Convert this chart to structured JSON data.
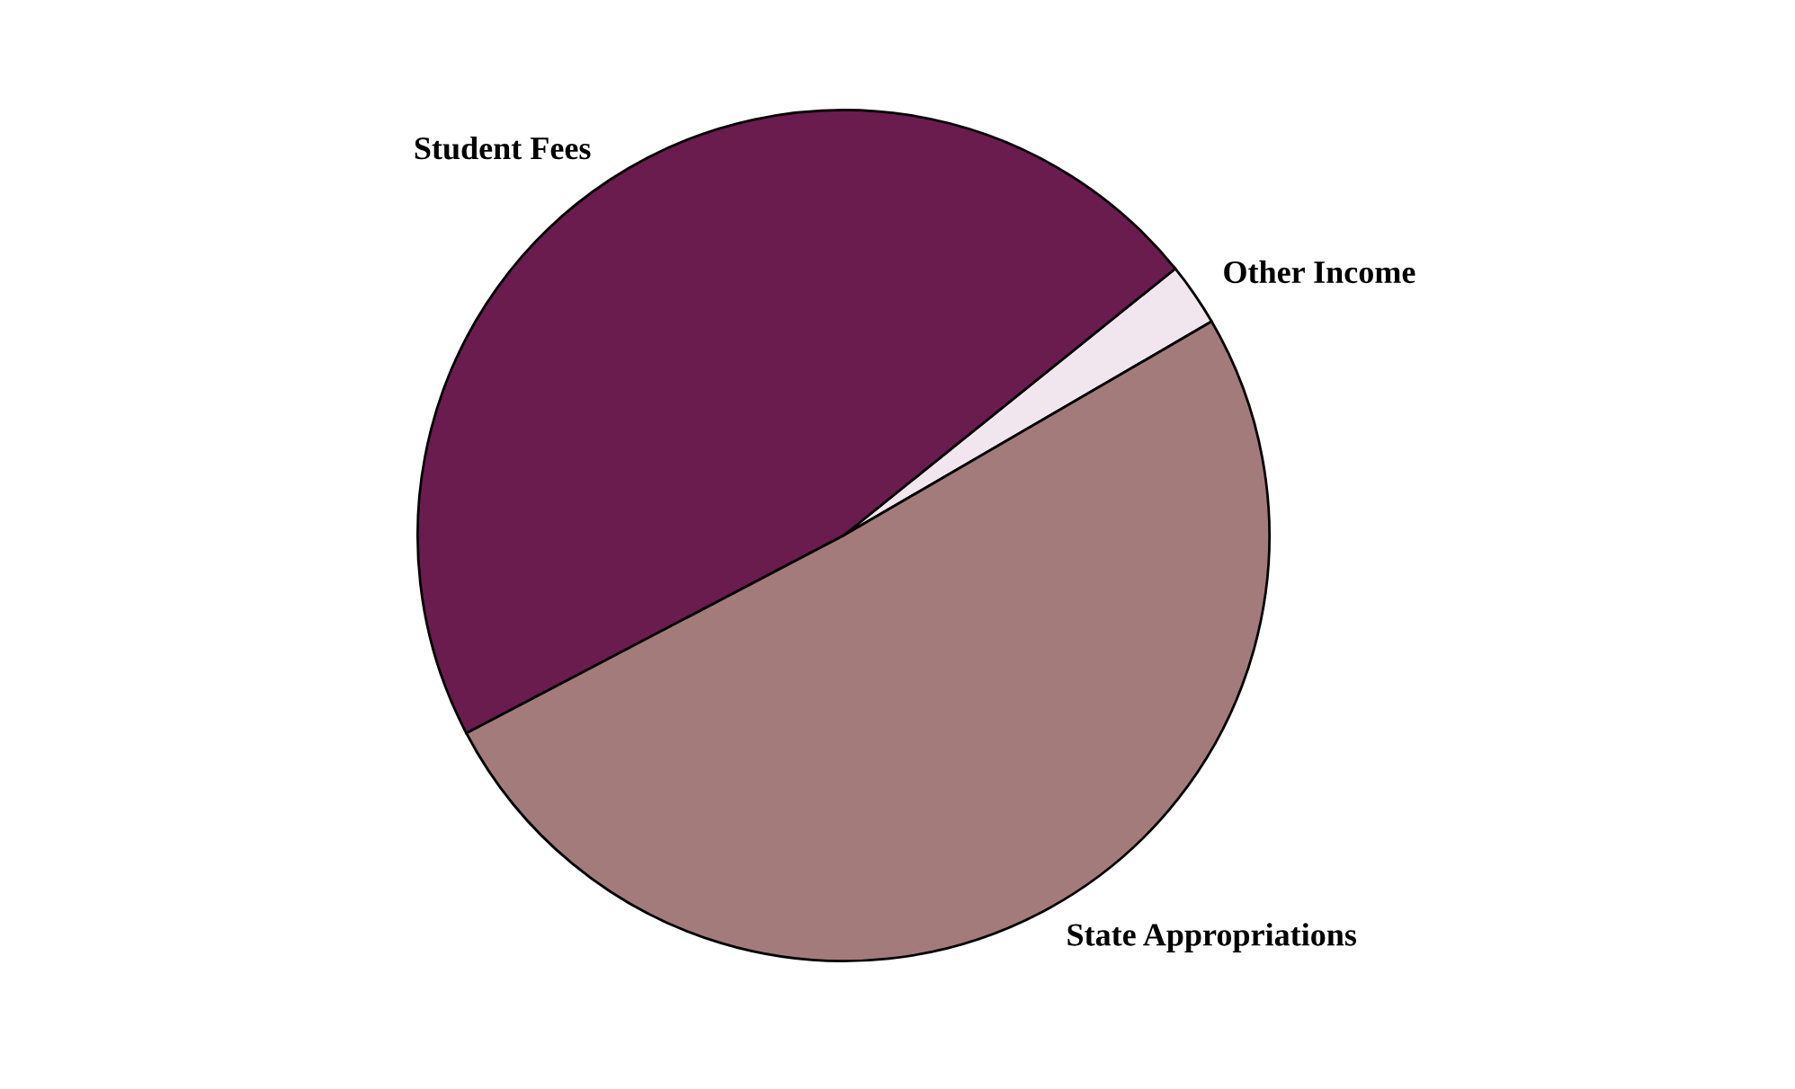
{
  "chart_data": {
    "type": "pie",
    "categories": [
      "Other Income",
      "Student Fees",
      "State Appropriations"
    ],
    "values": [
      2.4,
      46.9,
      50.7
    ],
    "colors": [
      "#f2e6ee",
      "#6a1c4e",
      "#a47b7b"
    ]
  }
}
